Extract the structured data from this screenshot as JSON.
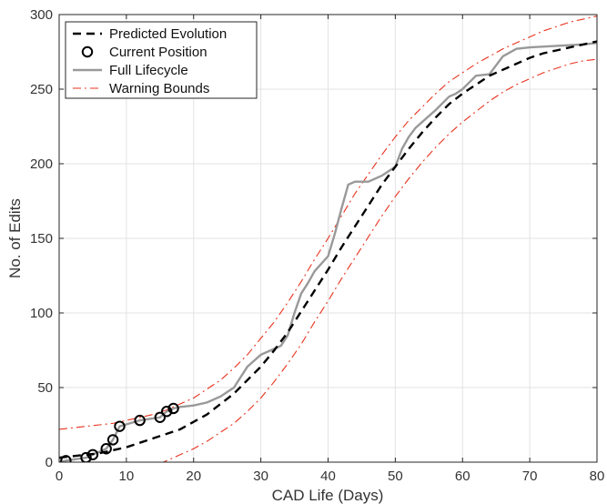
{
  "chart_data": {
    "type": "line",
    "xlabel": "CAD Life (Days)",
    "ylabel": "No. of Edits",
    "xlim": [
      0,
      80
    ],
    "ylim": [
      0,
      300
    ],
    "xticks": [
      0,
      10,
      20,
      30,
      40,
      50,
      60,
      70,
      80
    ],
    "yticks": [
      0,
      50,
      100,
      150,
      200,
      250,
      300
    ],
    "grid": true,
    "legend_position": "top-left",
    "series": [
      {
        "name": "Predicted Evolution",
        "style": "dashed",
        "color": "#000000",
        "x": [
          0,
          2,
          4,
          6,
          8,
          10,
          12,
          14,
          16,
          18,
          20,
          22,
          24,
          26,
          28,
          30,
          32,
          34,
          36,
          38,
          40,
          42,
          44,
          46,
          48,
          50,
          52,
          54,
          56,
          58,
          60,
          62,
          64,
          66,
          68,
          70,
          72,
          74,
          76,
          78,
          80
        ],
        "y": [
          3,
          4,
          5,
          6,
          8,
          10,
          13,
          16,
          19,
          22,
          27,
          32,
          39,
          46,
          55,
          64,
          75,
          87,
          101,
          115,
          129,
          144,
          158,
          172,
          186,
          198,
          210,
          221,
          231,
          240,
          247,
          253,
          259,
          263,
          267,
          271,
          274,
          276,
          278,
          280,
          282
        ]
      },
      {
        "name": "Current Position",
        "style": "markers",
        "color": "#000000",
        "x": [
          1,
          4,
          5,
          7,
          8,
          9,
          12,
          15,
          16,
          17
        ],
        "y": [
          1,
          3,
          5,
          9,
          15,
          24,
          28,
          30,
          34,
          36
        ]
      },
      {
        "name": "Full Lifecycle",
        "style": "solid",
        "color": "#999999",
        "x": [
          0,
          1,
          4,
          5,
          7,
          8,
          9,
          12,
          15,
          16,
          17,
          18,
          20,
          22,
          24,
          25,
          26,
          27,
          28,
          30,
          31,
          32,
          33,
          34,
          35,
          36,
          37,
          38,
          40,
          41,
          42,
          43,
          44,
          46,
          48,
          50,
          51,
          52,
          53,
          54,
          56,
          58,
          59,
          60,
          62,
          64,
          66,
          68,
          70,
          74,
          78,
          80
        ],
        "y": [
          0,
          1,
          3,
          5,
          9,
          15,
          24,
          28,
          30,
          34,
          36,
          37,
          38,
          40,
          44,
          47,
          50,
          57,
          64,
          72,
          74,
          76,
          78,
          85,
          100,
          113,
          120,
          128,
          138,
          153,
          170,
          186,
          188,
          188,
          192,
          198,
          210,
          218,
          224,
          228,
          236,
          245,
          247,
          250,
          259,
          260,
          272,
          277,
          278,
          279,
          280,
          281
        ]
      },
      {
        "name": "Warning Bounds",
        "style": "dash-dot",
        "color": "#e8331e",
        "x": [
          0,
          2,
          4,
          6,
          8,
          10,
          12,
          14,
          16,
          18,
          20,
          22,
          24,
          26,
          28,
          30,
          32,
          34,
          36,
          38,
          40,
          42,
          44,
          46,
          48,
          50,
          52,
          54,
          56,
          58,
          60,
          62,
          64,
          66,
          68,
          70,
          72,
          74,
          76,
          78,
          80
        ],
        "y": [
          22,
          23,
          24,
          25,
          26,
          28,
          30,
          32,
          35,
          39,
          43,
          49,
          55,
          63,
          72,
          83,
          94,
          107,
          121,
          136,
          150,
          165,
          180,
          193,
          206,
          218,
          229,
          238,
          247,
          255,
          261,
          267,
          272,
          277,
          281,
          285,
          289,
          292,
          295,
          297,
          299
        ]
      },
      {
        "name": "",
        "style": "dash-dot",
        "color": "#e8331e",
        "x": [
          0,
          2,
          4,
          6,
          8,
          10,
          12,
          14,
          16,
          18,
          20,
          22,
          24,
          26,
          28,
          30,
          32,
          34,
          36,
          38,
          40,
          42,
          44,
          46,
          48,
          50,
          52,
          54,
          56,
          58,
          60,
          62,
          64,
          66,
          68,
          70,
          72,
          74,
          76,
          78,
          80
        ],
        "y": [
          -17,
          -16,
          -14,
          -13,
          -11,
          -9,
          -6,
          -3,
          1,
          5,
          9,
          14,
          20,
          26,
          34,
          43,
          54,
          66,
          79,
          94,
          108,
          123,
          137,
          151,
          165,
          178,
          190,
          201,
          211,
          220,
          228,
          235,
          242,
          248,
          253,
          257,
          261,
          264,
          267,
          269,
          270
        ]
      }
    ],
    "legend_entries": [
      "Predicted Evolution",
      "Current Position",
      "Full Lifecycle",
      "Warning Bounds"
    ]
  }
}
